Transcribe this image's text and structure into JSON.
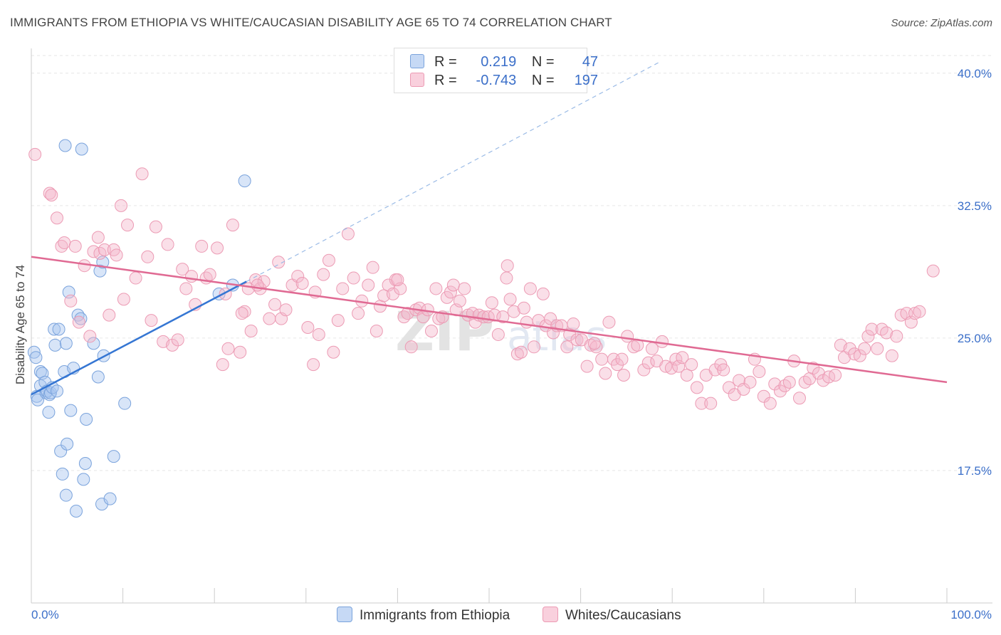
{
  "title": "IMMIGRANTS FROM ETHIOPIA VS WHITE/CAUCASIAN DISABILITY AGE 65 TO 74 CORRELATION CHART",
  "source": "Source: ZipAtlas.com",
  "watermark": "ZIPatlas",
  "legend_top": {
    "r_label": "R =",
    "n_label": "N =",
    "rows": [
      {
        "r": "0.219",
        "n": "47"
      },
      {
        "r": "-0.743",
        "n": "197"
      }
    ]
  },
  "chart_data": {
    "type": "scatter",
    "xlabel": "",
    "ylabel": "Disability Age 65 to 74",
    "xlim": [
      0,
      100
    ],
    "ylim": [
      10,
      41
    ],
    "x_tick_labels": [
      "0.0%",
      "100.0%"
    ],
    "y_ticks": [
      17.5,
      25.0,
      32.5,
      40.0
    ],
    "y_tick_labels": [
      "17.5%",
      "25.0%",
      "32.5%",
      "40.0%"
    ],
    "grid": true,
    "legend_placement": "bottom",
    "series": [
      {
        "name": "Immigrants from Ethiopia",
        "color": "#a9c6ef",
        "stroke": "#7aa3dc",
        "trend_color": "#3576d3",
        "trend": {
          "x0": 0,
          "y0": 21.8,
          "x1": 23.5,
          "y1": 28.2,
          "dash_to_x": 68.5,
          "dash_to_y": 40.6
        },
        "points": [
          [
            0.3,
            24.2
          ],
          [
            0.5,
            23.9
          ],
          [
            0.6,
            21.7
          ],
          [
            0.7,
            21.5
          ],
          [
            1.0,
            23.1
          ],
          [
            1.0,
            22.3
          ],
          [
            1.2,
            23.0
          ],
          [
            1.5,
            22.5
          ],
          [
            1.6,
            21.9
          ],
          [
            1.7,
            22.0
          ],
          [
            1.9,
            20.8
          ],
          [
            2.0,
            21.8
          ],
          [
            2.1,
            21.9
          ],
          [
            2.3,
            22.2
          ],
          [
            2.5,
            25.5
          ],
          [
            2.6,
            24.6
          ],
          [
            2.8,
            22.0
          ],
          [
            3.0,
            25.5
          ],
          [
            3.2,
            18.6
          ],
          [
            3.4,
            17.3
          ],
          [
            3.6,
            23.1
          ],
          [
            3.8,
            16.1
          ],
          [
            3.8,
            24.7
          ],
          [
            3.9,
            19.0
          ],
          [
            4.1,
            27.6
          ],
          [
            4.3,
            20.9
          ],
          [
            4.6,
            23.3
          ],
          [
            4.9,
            15.2
          ],
          [
            5.1,
            26.3
          ],
          [
            5.4,
            26.1
          ],
          [
            5.7,
            17.0
          ],
          [
            5.9,
            17.9
          ],
          [
            6.0,
            20.4
          ],
          [
            6.8,
            24.7
          ],
          [
            7.3,
            22.8
          ],
          [
            7.5,
            28.8
          ],
          [
            7.7,
            15.6
          ],
          [
            7.8,
            29.3
          ],
          [
            7.9,
            24.0
          ],
          [
            8.6,
            15.9
          ],
          [
            9.0,
            18.3
          ],
          [
            10.2,
            21.3
          ],
          [
            3.7,
            35.9
          ],
          [
            5.5,
            35.7
          ],
          [
            23.3,
            33.9
          ],
          [
            22.0,
            28.0
          ],
          [
            20.5,
            27.5
          ]
        ]
      },
      {
        "name": "Whites/Caucasians",
        "color": "#f5b8cb",
        "stroke": "#ec9bb4",
        "trend_color": "#e06a93",
        "trend": {
          "x0": 0,
          "y0": 29.6,
          "x1": 100,
          "y1": 22.5
        },
        "points": [
          [
            0.4,
            35.4
          ],
          [
            2.0,
            33.2
          ],
          [
            2.2,
            33.1
          ],
          [
            2.8,
            31.8
          ],
          [
            3.3,
            30.2
          ],
          [
            3.6,
            30.4
          ],
          [
            4.3,
            27.1
          ],
          [
            4.8,
            30.2
          ],
          [
            5.2,
            25.9
          ],
          [
            5.8,
            29.1
          ],
          [
            6.4,
            25.1
          ],
          [
            6.8,
            29.9
          ],
          [
            7.3,
            30.7
          ],
          [
            7.5,
            29.8
          ],
          [
            8.0,
            30.0
          ],
          [
            8.5,
            26.3
          ],
          [
            9.0,
            30.0
          ],
          [
            9.3,
            29.7
          ],
          [
            9.8,
            32.5
          ],
          [
            10.1,
            27.2
          ],
          [
            10.5,
            31.4
          ],
          [
            11.4,
            28.4
          ],
          [
            12.1,
            34.3
          ],
          [
            12.7,
            29.6
          ],
          [
            13.1,
            26.0
          ],
          [
            13.6,
            31.3
          ],
          [
            14.4,
            24.8
          ],
          [
            14.9,
            30.3
          ],
          [
            15.4,
            24.6
          ],
          [
            16.0,
            24.9
          ],
          [
            16.5,
            28.9
          ],
          [
            16.9,
            27.8
          ],
          [
            17.5,
            28.5
          ],
          [
            17.9,
            26.9
          ],
          [
            18.6,
            30.2
          ],
          [
            19.1,
            28.4
          ],
          [
            19.5,
            28.6
          ],
          [
            20.3,
            30.1
          ],
          [
            20.9,
            23.5
          ],
          [
            21.2,
            27.5
          ],
          [
            21.5,
            24.4
          ],
          [
            22.0,
            31.4
          ],
          [
            22.8,
            24.2
          ],
          [
            23.3,
            26.5
          ],
          [
            23.7,
            27.8
          ],
          [
            24.0,
            25.4
          ],
          [
            24.5,
            28.3
          ],
          [
            25.0,
            27.8
          ],
          [
            25.4,
            28.2
          ],
          [
            26.0,
            26.1
          ],
          [
            26.6,
            26.9
          ],
          [
            27.3,
            26.1
          ],
          [
            27.8,
            26.6
          ],
          [
            28.5,
            28.0
          ],
          [
            29.1,
            28.5
          ],
          [
            29.6,
            28.1
          ],
          [
            30.2,
            25.6
          ],
          [
            30.8,
            23.5
          ],
          [
            31.4,
            25.2
          ],
          [
            31.9,
            28.6
          ],
          [
            32.5,
            29.4
          ],
          [
            33.0,
            24.2
          ],
          [
            33.5,
            26.0
          ],
          [
            34.0,
            27.8
          ],
          [
            34.6,
            30.9
          ],
          [
            35.2,
            28.4
          ],
          [
            35.7,
            26.4
          ],
          [
            36.1,
            27.1
          ],
          [
            36.8,
            28.0
          ],
          [
            37.3,
            29.0
          ],
          [
            37.7,
            25.4
          ],
          [
            38.1,
            26.8
          ],
          [
            38.5,
            27.4
          ],
          [
            39.0,
            28.0
          ],
          [
            39.5,
            27.5
          ],
          [
            39.8,
            28.3
          ],
          [
            40.3,
            27.8
          ],
          [
            40.7,
            26.2
          ],
          [
            41.1,
            26.4
          ],
          [
            41.5,
            24.5
          ],
          [
            42.0,
            26.6
          ],
          [
            42.4,
            26.7
          ],
          [
            42.8,
            26.2
          ],
          [
            43.3,
            26.6
          ],
          [
            43.7,
            25.4
          ],
          [
            44.2,
            27.8
          ],
          [
            44.5,
            26.1
          ],
          [
            44.9,
            26.2
          ],
          [
            45.4,
            27.3
          ],
          [
            45.8,
            27.6
          ],
          [
            46.1,
            28.0
          ],
          [
            46.4,
            26.6
          ],
          [
            46.8,
            27.1
          ],
          [
            47.3,
            27.8
          ],
          [
            47.7,
            26.3
          ],
          [
            48.2,
            26.4
          ],
          [
            48.5,
            25.9
          ],
          [
            48.9,
            26.3
          ],
          [
            49.4,
            26.2
          ],
          [
            49.9,
            26.2
          ],
          [
            50.3,
            27.0
          ],
          [
            50.6,
            26.3
          ],
          [
            51.0,
            25.2
          ],
          [
            51.5,
            26.2
          ],
          [
            51.9,
            28.4
          ],
          [
            52.3,
            27.2
          ],
          [
            52.7,
            26.5
          ],
          [
            53.1,
            24.1
          ],
          [
            53.5,
            24.2
          ],
          [
            53.8,
            26.7
          ],
          [
            54.1,
            25.9
          ],
          [
            54.5,
            27.8
          ],
          [
            54.9,
            24.5
          ],
          [
            55.4,
            26.0
          ],
          [
            55.9,
            27.5
          ],
          [
            56.2,
            25.7
          ],
          [
            56.7,
            26.1
          ],
          [
            57.0,
            25.3
          ],
          [
            57.4,
            25.7
          ],
          [
            57.9,
            25.7
          ],
          [
            58.5,
            24.5
          ],
          [
            58.8,
            25.2
          ],
          [
            59.2,
            25.8
          ],
          [
            59.6,
            24.9
          ],
          [
            60.1,
            24.9
          ],
          [
            60.7,
            23.4
          ],
          [
            61.1,
            24.6
          ],
          [
            61.7,
            24.5
          ],
          [
            62.3,
            23.8
          ],
          [
            62.7,
            23.0
          ],
          [
            63.1,
            25.9
          ],
          [
            63.6,
            23.8
          ],
          [
            64.0,
            23.5
          ],
          [
            64.5,
            23.8
          ],
          [
            65.1,
            25.1
          ],
          [
            65.8,
            24.5
          ],
          [
            66.2,
            24.6
          ],
          [
            66.9,
            23.2
          ],
          [
            67.4,
            23.6
          ],
          [
            67.8,
            24.4
          ],
          [
            68.3,
            23.7
          ],
          [
            68.9,
            24.8
          ],
          [
            69.3,
            23.4
          ],
          [
            69.9,
            23.3
          ],
          [
            70.4,
            23.8
          ],
          [
            70.7,
            23.4
          ],
          [
            71.1,
            23.9
          ],
          [
            71.6,
            22.9
          ],
          [
            72.1,
            23.5
          ],
          [
            72.7,
            22.2
          ],
          [
            73.2,
            21.3
          ],
          [
            73.7,
            22.9
          ],
          [
            74.2,
            21.3
          ],
          [
            74.7,
            23.2
          ],
          [
            75.3,
            23.5
          ],
          [
            75.6,
            23.2
          ],
          [
            76.2,
            22.2
          ],
          [
            76.8,
            21.8
          ],
          [
            77.3,
            22.6
          ],
          [
            77.8,
            22.1
          ],
          [
            78.5,
            22.5
          ],
          [
            79.0,
            23.8
          ],
          [
            79.5,
            23.1
          ],
          [
            80.0,
            21.7
          ],
          [
            80.7,
            21.3
          ],
          [
            81.2,
            22.4
          ],
          [
            81.8,
            22.0
          ],
          [
            82.3,
            22.3
          ],
          [
            82.8,
            22.5
          ],
          [
            83.3,
            23.7
          ],
          [
            83.9,
            21.6
          ],
          [
            84.5,
            22.5
          ],
          [
            85.0,
            22.7
          ],
          [
            85.4,
            23.3
          ],
          [
            86.0,
            23.0
          ],
          [
            86.5,
            22.6
          ],
          [
            87.1,
            22.8
          ],
          [
            87.8,
            22.9
          ],
          [
            88.4,
            24.6
          ],
          [
            88.8,
            23.9
          ],
          [
            89.4,
            24.4
          ],
          [
            89.9,
            24.1
          ],
          [
            90.5,
            24.0
          ],
          [
            91.0,
            24.4
          ],
          [
            91.4,
            25.1
          ],
          [
            91.8,
            25.5
          ],
          [
            92.4,
            24.4
          ],
          [
            92.9,
            25.5
          ],
          [
            93.4,
            25.3
          ],
          [
            94.0,
            24.0
          ],
          [
            94.5,
            25.1
          ],
          [
            95.0,
            26.3
          ],
          [
            95.6,
            26.4
          ],
          [
            96.1,
            25.9
          ],
          [
            96.5,
            26.4
          ],
          [
            97.0,
            26.5
          ],
          [
            98.5,
            28.8
          ],
          [
            23.0,
            26.4
          ],
          [
            24.7,
            28.0
          ],
          [
            27.0,
            29.3
          ],
          [
            31.0,
            27.6
          ],
          [
            40.0,
            28.3
          ],
          [
            52.0,
            29.1
          ],
          [
            61.5,
            24.7
          ],
          [
            64.7,
            22.9
          ]
        ]
      }
    ]
  }
}
